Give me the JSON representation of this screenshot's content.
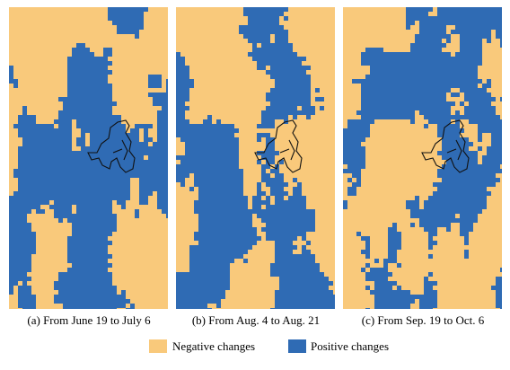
{
  "panels": [
    {
      "caption": "(a) From June 19 to July 6"
    },
    {
      "caption": "(b) From Aug. 4 to Aug. 21"
    },
    {
      "caption": "(c) From Sep. 19 to Oct. 6"
    }
  ],
  "legend": [
    {
      "label": "Negative changes",
      "color": "#f9c97b"
    },
    {
      "label": "Positive changes",
      "color": "#2f6bb4"
    }
  ]
}
